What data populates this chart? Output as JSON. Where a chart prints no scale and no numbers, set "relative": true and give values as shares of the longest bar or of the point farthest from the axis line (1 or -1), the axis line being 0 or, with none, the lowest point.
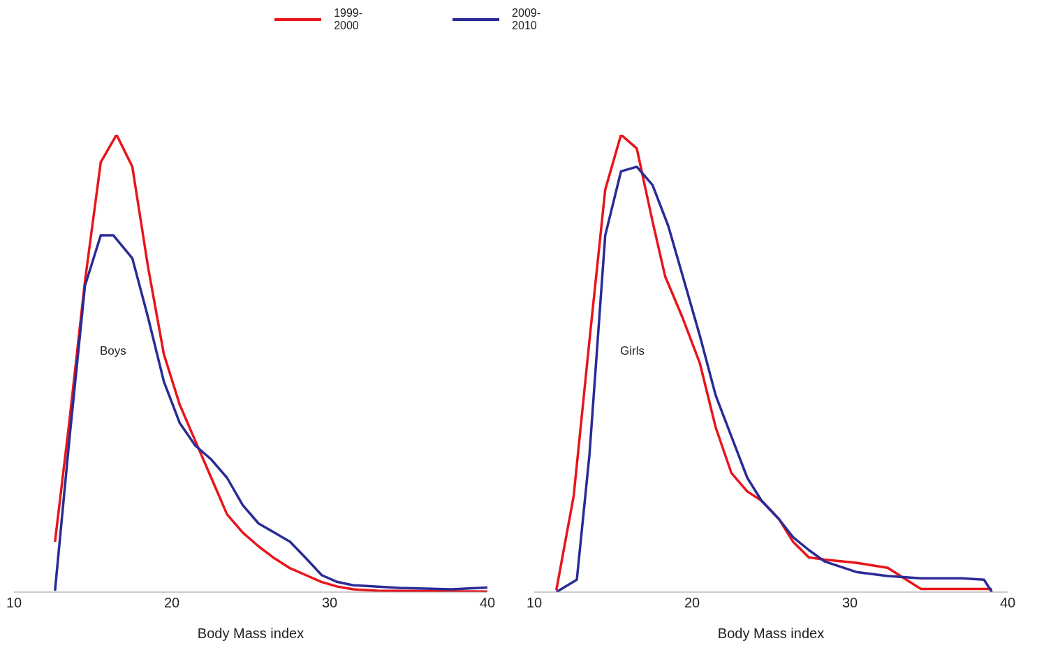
{
  "chart_data": [
    {
      "type": "line",
      "relative": true,
      "xlabel": "Body Mass index",
      "xlim": [
        10,
        40
      ],
      "xticks": [
        10,
        20,
        30,
        40
      ],
      "grid": false,
      "legend": "top",
      "marker": "none",
      "line_style": "solid",
      "annotations": [
        "Boys"
      ],
      "series": [
        {
          "name": "1999-2000",
          "color": "#e8151b",
          "x": [
            12.6,
            13.5,
            14.5,
            15.5,
            16.5,
            17.5,
            18.5,
            19.5,
            20.5,
            21.5,
            22.5,
            23.5,
            24.5,
            25.5,
            26.5,
            27.5,
            28.5,
            29.5,
            30.5,
            31.5,
            33,
            40
          ],
          "values": [
            0.11,
            0.37,
            0.68,
            0.94,
            1.0,
            0.93,
            0.71,
            0.52,
            0.41,
            0.33,
            0.25,
            0.17,
            0.13,
            0.1,
            0.074,
            0.052,
            0.037,
            0.022,
            0.012,
            0.006,
            0.003,
            0.001
          ]
        },
        {
          "name": "2009-2010",
          "color": "#2a2b96",
          "x": [
            12.6,
            13.5,
            14.5,
            15.5,
            16.3,
            17.5,
            18.5,
            19.5,
            20.5,
            21.5,
            22.5,
            23.5,
            24.5,
            25.5,
            26.5,
            27.5,
            28.5,
            29.5,
            30.5,
            31.5,
            34.4,
            37.7,
            40
          ],
          "values": [
            0.003,
            0.33,
            0.67,
            0.78,
            0.78,
            0.73,
            0.6,
            0.46,
            0.37,
            0.32,
            0.29,
            0.25,
            0.19,
            0.15,
            0.13,
            0.11,
            0.074,
            0.037,
            0.022,
            0.015,
            0.009,
            0.006,
            0.01
          ]
        }
      ]
    },
    {
      "type": "line",
      "relative": true,
      "xlabel": "Body Mass index",
      "xlim": [
        10,
        40
      ],
      "xticks": [
        10,
        20,
        30,
        40
      ],
      "grid": false,
      "marker": "none",
      "line_style": "solid",
      "annotations": [
        "Girls"
      ],
      "series": [
        {
          "color": "#e8151b",
          "x": [
            11.4,
            12.5,
            13.5,
            14.5,
            15.5,
            16.5,
            17.5,
            18.3,
            19.4,
            20.5,
            21.5,
            22.5,
            23.5,
            24.4,
            25.5,
            26.4,
            27.4,
            28.4,
            30.4,
            32.4,
            34.5,
            39
          ],
          "values": [
            0.004,
            0.21,
            0.55,
            0.88,
            1.0,
            0.97,
            0.81,
            0.69,
            0.6,
            0.5,
            0.36,
            0.26,
            0.22,
            0.2,
            0.16,
            0.11,
            0.076,
            0.071,
            0.064,
            0.053,
            0.007,
            0.007
          ]
        },
        {
          "color": "#2a2b96",
          "x": [
            11.4,
            12.7,
            13.5,
            14.5,
            15.5,
            16.5,
            17.5,
            18.5,
            19.5,
            20.5,
            21.5,
            22.5,
            23.5,
            24.4,
            25.5,
            26.4,
            27.4,
            28.4,
            30.4,
            32.4,
            34.5,
            37.1,
            38.5,
            39
          ],
          "values": [
            0,
            0.027,
            0.3,
            0.78,
            0.92,
            0.93,
            0.89,
            0.8,
            0.68,
            0.56,
            0.43,
            0.34,
            0.25,
            0.2,
            0.16,
            0.12,
            0.092,
            0.067,
            0.044,
            0.035,
            0.03,
            0.03,
            0.027,
            0
          ]
        }
      ]
    }
  ]
}
